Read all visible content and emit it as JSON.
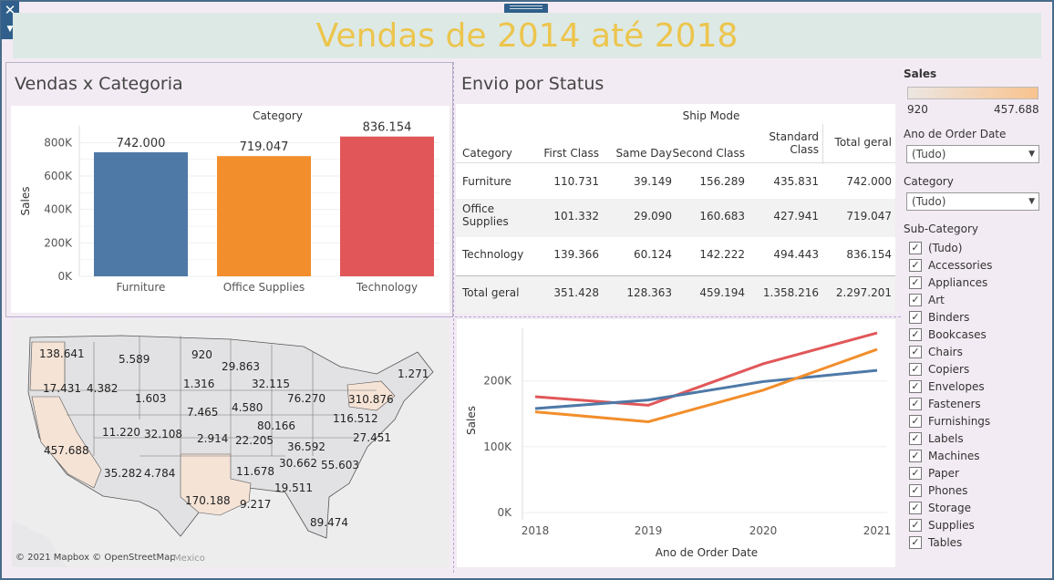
{
  "dashboard_title": "Vendas de 2014 até 2018",
  "controls": {
    "close_glyph": "✕",
    "menu_glyph": "▼"
  },
  "panels": {
    "bar_title": "Vendas x Categoria",
    "table_title": "Envio por Status"
  },
  "chart_data": [
    {
      "type": "bar",
      "title": "",
      "header": "Category",
      "categories": [
        "Furniture",
        "Office Supplies",
        "Technology"
      ],
      "values": [
        742000,
        719047,
        836154
      ],
      "value_labels": [
        "742.000",
        "719.047",
        "836.154"
      ],
      "colors": [
        "#4e79a7",
        "#f28e2b",
        "#e15759"
      ],
      "ylabel": "Sales",
      "yticks": [
        "0K",
        "200K",
        "400K",
        "600K",
        "800K"
      ],
      "ylim": [
        0,
        900000
      ],
      "grid": true
    },
    {
      "type": "line",
      "title": "",
      "xlabel": "Ano de Order Date",
      "ylabel": "Sales",
      "x": [
        "2018",
        "2019",
        "2020",
        "2021"
      ],
      "yticks": [
        "0K",
        "100K",
        "200K"
      ],
      "ylim": [
        0,
        280000
      ],
      "series": [
        {
          "color": "#e15759",
          "values": [
            176000,
            163000,
            226000,
            273000
          ]
        },
        {
          "color": "#4e79a7",
          "values": [
            158000,
            171000,
            199000,
            216000
          ]
        },
        {
          "color": "#f28e2b",
          "values": [
            153000,
            138000,
            186000,
            248000
          ]
        }
      ]
    }
  ],
  "table": {
    "group_header": "Ship Mode",
    "row_header": "Category",
    "columns": [
      "First Class",
      "Same Day",
      "Second Class",
      "Standard Class",
      "Total geral"
    ],
    "rows": [
      {
        "label": "Furniture",
        "cells": [
          "110.731",
          "39.149",
          "156.289",
          "435.831",
          "742.000"
        ]
      },
      {
        "label": "Office Supplies",
        "cells": [
          "101.332",
          "29.090",
          "160.683",
          "427.941",
          "719.047"
        ]
      },
      {
        "label": "Technology",
        "cells": [
          "139.366",
          "60.124",
          "142.222",
          "494.443",
          "836.154"
        ]
      },
      {
        "label": "Total geral",
        "cells": [
          "351.428",
          "128.363",
          "459.194",
          "1.358.216",
          "2.297.201"
        ]
      }
    ]
  },
  "map": {
    "attribution": "© 2021 Mapbox © OpenStreetMap",
    "country_label": "Mexico",
    "labels": [
      "138.641",
      "5.589",
      "920",
      "29.863",
      "1.271",
      "17.431",
      "4.382",
      "1.316",
      "32.115",
      "1.603",
      "76.270",
      "310.876",
      "7.465",
      "4.580",
      "116.512",
      "80.166",
      "11.220",
      "32.108",
      "2.914",
      "22.205",
      "27.451",
      "457.688",
      "36.592",
      "30.662",
      "55.603",
      "35.282",
      "4.784",
      "11.678",
      "170.188",
      "19.511",
      "9.217",
      "89.474"
    ]
  },
  "filters": {
    "sales_legend": {
      "title": "Sales",
      "min": "920",
      "max": "457.688",
      "color_low": "#ece6e2",
      "color_high": "#f8c38e"
    },
    "order_date": {
      "label": "Ano de Order Date",
      "value": "(Tudo)"
    },
    "category": {
      "label": "Category",
      "value": "(Tudo)"
    },
    "sub_category": {
      "label": "Sub-Category",
      "items": [
        "(Tudo)",
        "Accessories",
        "Appliances",
        "Art",
        "Binders",
        "Bookcases",
        "Chairs",
        "Copiers",
        "Envelopes",
        "Fasteners",
        "Furnishings",
        "Labels",
        "Machines",
        "Paper",
        "Phones",
        "Storage",
        "Supplies",
        "Tables"
      ]
    }
  }
}
